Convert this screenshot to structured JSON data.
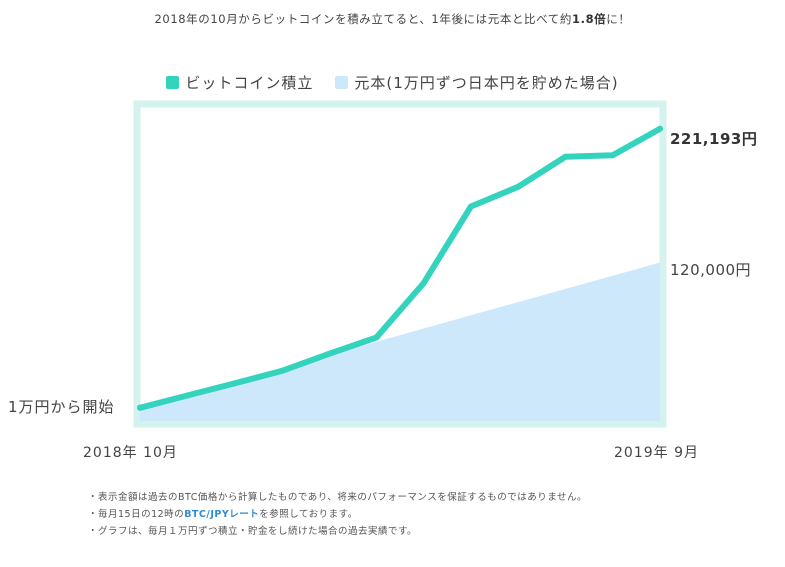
{
  "headline": {
    "prefix": "2018年の10月からビットコインを積み立てると、1年後には元本と比べて約",
    "emph": "1.8倍",
    "suffix": "に！"
  },
  "legend": [
    {
      "label": "ビットコイン積立",
      "color": "#34d3bd"
    },
    {
      "label": "元本(1万円ずつ日本円を貯めた場合)",
      "color": "#cde8fa"
    }
  ],
  "chart_data": {
    "type": "line",
    "series": [
      {
        "name": "ビットコイン積立",
        "color": "#34d3bd",
        "values": [
          10000,
          19300,
          28500,
          37900,
          50900,
          63200,
          104300,
          162400,
          177300,
          200100,
          201200,
          221193
        ]
      },
      {
        "name": "元本(1万円ずつ日本円を貯めた場合)",
        "color": "#cde8fa",
        "style": "area",
        "values": [
          10000,
          20000,
          30000,
          40000,
          50000,
          60000,
          70000,
          80000,
          90000,
          100000,
          110000,
          120000
        ]
      }
    ],
    "ylim": [
      0,
      240000
    ],
    "annotations": {
      "start": "1万円から開始",
      "end_btc": "221,193円",
      "end_principal": "120,000円"
    },
    "x_start_label": "2018年 10月",
    "x_end_label": "2019年 9月"
  },
  "footnotes": {
    "line1": "・表示金額は過去のBTC価格から計算したものであり、将来のパフォーマンスを保証するものではありません。",
    "line2_prefix": "・毎月15日の12時の",
    "line2_link": "BTC/JPYレート",
    "line2_suffix": "を参照しております。",
    "line3": "・グラフは、毎月１万円ずつ積立・貯金をし続けた場合の過去実績です。"
  }
}
